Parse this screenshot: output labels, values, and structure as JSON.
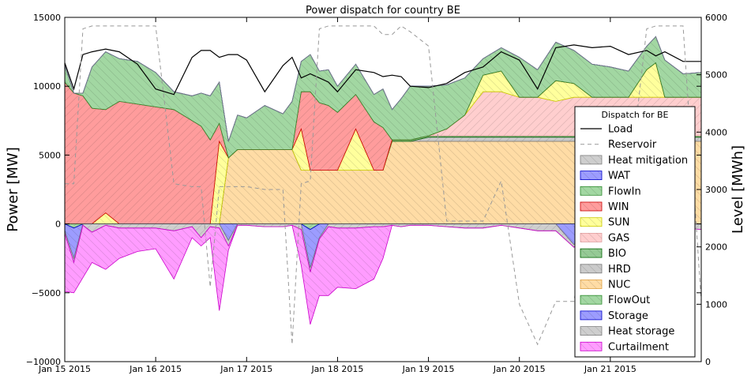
{
  "chart_data": {
    "type": "area",
    "title": "Power dispatch for country BE",
    "ylabel_left": "Power [MW]",
    "ylabel_right": "Level [MWh]",
    "ylim_left": [
      -10000,
      15000
    ],
    "ylim_right": [
      0,
      6000
    ],
    "yticks_left": [
      -10000,
      -5000,
      0,
      5000,
      10000,
      15000
    ],
    "yticks_left_labels": [
      "−10000",
      "−5000",
      "0",
      "5000",
      "10000",
      "15000"
    ],
    "yticks_right": [
      0,
      1000,
      2000,
      3000,
      4000,
      5000,
      6000
    ],
    "xlim": [
      0,
      7
    ],
    "xticks": [
      0,
      1,
      2,
      3,
      4,
      5,
      6
    ],
    "xtick_labels": [
      "Jan 15 2015",
      "Jan 16 2015",
      "Jan 17 2015",
      "Jan 18 2015",
      "Jan 19 2015",
      "Jan 20 2015",
      "Jan 21 2015"
    ],
    "legend_title": "Dispatch for BE",
    "legend_position": "center-right",
    "legend": [
      {
        "name": "Load",
        "kind": "line",
        "color": "#000000"
      },
      {
        "name": "Reservoir",
        "kind": "dashed",
        "color": "#999999"
      },
      {
        "name": "Heat mitigation",
        "kind": "patch",
        "color": "#c0c0c0",
        "edge": "#808080"
      },
      {
        "name": "WAT",
        "kind": "patch",
        "color": "#8080ff",
        "edge": "#0000cc"
      },
      {
        "name": "FlowIn",
        "kind": "patch",
        "color": "#88cc88",
        "edge": "#2e8b2e"
      },
      {
        "name": "WIN",
        "kind": "patch",
        "color": "#ff8080",
        "edge": "#cc0000"
      },
      {
        "name": "SUN",
        "kind": "patch",
        "color": "#ffff80",
        "edge": "#cccc00"
      },
      {
        "name": "GAS",
        "kind": "patch",
        "color": "#ffc0c0",
        "edge": "#e0a0a0"
      },
      {
        "name": "BIO",
        "kind": "patch",
        "color": "#77bb77",
        "edge": "#006400"
      },
      {
        "name": "HRD",
        "kind": "patch",
        "color": "#bbbbbb",
        "edge": "#777777"
      },
      {
        "name": "NUC",
        "kind": "patch",
        "color": "#ffd28c",
        "edge": "#e0a040"
      },
      {
        "name": "FlowOut",
        "kind": "patch",
        "color": "#88cc88",
        "edge": "#2e8b2e"
      },
      {
        "name": "Storage",
        "kind": "patch",
        "color": "#8080ff",
        "edge": "#0000cc"
      },
      {
        "name": "Heat storage",
        "kind": "patch",
        "color": "#c0c0c0",
        "edge": "#808080"
      },
      {
        "name": "Curtailment",
        "kind": "patch",
        "color": "#ff80ff",
        "edge": "#cc00cc"
      }
    ],
    "x": [
      0,
      0.1,
      0.2,
      0.3,
      0.45,
      0.6,
      0.8,
      1.0,
      1.2,
      1.4,
      1.5,
      1.6,
      1.7,
      1.8,
      1.9,
      2.0,
      2.2,
      2.4,
      2.5,
      2.6,
      2.7,
      2.8,
      2.9,
      3.0,
      3.2,
      3.4,
      3.5,
      3.6,
      3.7,
      3.8,
      4.0,
      4.2,
      4.4,
      4.6,
      4.8,
      5.0,
      5.2,
      5.4,
      5.6,
      5.8,
      6.0,
      6.2,
      6.4,
      6.5,
      6.6,
      6.8,
      7.0
    ],
    "series": [
      {
        "name": "NUC",
        "values": [
          0,
          0,
          0,
          0,
          0,
          0,
          0,
          0,
          0,
          0,
          0,
          0,
          0,
          4800,
          5400,
          5400,
          5400,
          5400,
          5400,
          3900,
          3900,
          3900,
          3900,
          3900,
          3900,
          3900,
          3900,
          6000,
          6000,
          6000,
          6000,
          6000,
          6000,
          6000,
          6000,
          6000,
          6000,
          6000,
          6000,
          6000,
          6000,
          6000,
          6000,
          6000,
          6000,
          6000,
          6000
        ]
      },
      {
        "name": "HRD",
        "values": [
          0,
          0,
          0,
          0,
          0,
          0,
          0,
          0,
          0,
          0,
          0,
          0,
          0,
          0,
          0,
          0,
          0,
          0,
          0,
          0,
          0,
          0,
          0,
          0,
          0,
          0,
          0,
          0,
          0,
          0,
          300,
          300,
          300,
          300,
          300,
          300,
          300,
          300,
          300,
          300,
          300,
          300,
          300,
          300,
          300,
          300,
          300
        ]
      },
      {
        "name": "BIO",
        "values": [
          0,
          0,
          0,
          0,
          0,
          0,
          0,
          0,
          0,
          0,
          0,
          0,
          0,
          0,
          0,
          0,
          0,
          0,
          0,
          0,
          0,
          0,
          0,
          0,
          0,
          0,
          0,
          100,
          100,
          100,
          100,
          100,
          100,
          100,
          100,
          100,
          100,
          100,
          100,
          100,
          100,
          100,
          100,
          100,
          100,
          100,
          100
        ]
      },
      {
        "name": "GAS",
        "values": [
          0,
          0,
          0,
          0,
          0,
          0,
          0,
          0,
          0,
          0,
          0,
          0,
          0,
          0,
          0,
          0,
          0,
          0,
          0,
          0,
          0,
          0,
          0,
          0,
          0,
          0,
          0,
          0,
          0,
          0,
          0,
          500,
          1500,
          3200,
          3200,
          2800,
          2800,
          2500,
          2800,
          2800,
          2800,
          2800,
          2800,
          2800,
          2800,
          2800,
          2800
        ]
      },
      {
        "name": "SUN",
        "values": [
          0,
          0,
          0,
          0,
          800,
          0,
          0,
          0,
          0,
          0,
          0,
          0,
          6000,
          0,
          0,
          0,
          0,
          0,
          0,
          3000,
          0,
          0,
          0,
          0,
          3000,
          0,
          0,
          0,
          0,
          0,
          0,
          0,
          0,
          1200,
          1500,
          0,
          0,
          1500,
          1000,
          0,
          0,
          0,
          2000,
          2500,
          0,
          0,
          0
        ]
      },
      {
        "name": "WIN",
        "values": [
          10300,
          9500,
          9300,
          8400,
          7500,
          8900,
          8700,
          8500,
          8300,
          7500,
          7100,
          6100,
          1300,
          0,
          0,
          0,
          0,
          0,
          0,
          2700,
          5700,
          4900,
          4700,
          4200,
          2500,
          3500,
          3100,
          0,
          0,
          0,
          0,
          0,
          0,
          0,
          0,
          0,
          0,
          0,
          0,
          0,
          0,
          0,
          0,
          0,
          0,
          0,
          0
        ]
      },
      {
        "name": "FlowIn",
        "values": [
          1200,
          0,
          200,
          3000,
          4200,
          3100,
          3100,
          2500,
          1300,
          1800,
          2400,
          3200,
          3000,
          1200,
          2500,
          2300,
          3200,
          2600,
          3500,
          2200,
          2700,
          2300,
          2600,
          1900,
          2200,
          2000,
          2800,
          2200,
          3000,
          3900,
          3600,
          3200,
          2700,
          1200,
          1700,
          2900,
          2000,
          2800,
          2400,
          2400,
          2200,
          1900,
          1700,
          1900,
          2700,
          1700,
          1800
        ]
      },
      {
        "name": "WAT",
        "values": [
          0,
          0,
          0,
          0,
          0,
          0,
          0,
          0,
          0,
          0,
          0,
          0,
          0,
          0,
          0,
          0,
          0,
          0,
          0,
          0,
          0,
          0,
          0,
          0,
          0,
          0,
          0,
          0,
          0,
          0,
          0,
          0,
          0,
          0,
          0,
          0,
          0,
          0,
          0,
          0,
          0,
          0,
          0,
          0,
          0,
          0,
          0
        ]
      },
      {
        "name": "Heat mitigation",
        "values": [
          0,
          0,
          0,
          0,
          0,
          0,
          0,
          0,
          0,
          0,
          0,
          0,
          0,
          0,
          0,
          0,
          0,
          0,
          0,
          0,
          0,
          0,
          0,
          0,
          0,
          0,
          0,
          0,
          0,
          0,
          0,
          0,
          0,
          0,
          0,
          0,
          0,
          0,
          0,
          0,
          0,
          0,
          0,
          0,
          0,
          0,
          0
        ]
      },
      {
        "name": "FlowOut",
        "values": [
          0,
          -300,
          0,
          0,
          0,
          0,
          0,
          0,
          0,
          0,
          0,
          0,
          0,
          0,
          0,
          0,
          0,
          0,
          0,
          0,
          -400,
          0,
          0,
          0,
          0,
          0,
          0,
          0,
          0,
          0,
          0,
          0,
          0,
          0,
          0,
          0,
          0,
          0,
          0,
          0,
          0,
          0,
          0,
          0,
          0,
          0,
          0
        ]
      },
      {
        "name": "Storage",
        "values": [
          -500,
          -2200,
          0,
          0,
          0,
          0,
          0,
          0,
          0,
          0,
          0,
          0,
          0,
          -1200,
          0,
          0,
          0,
          0,
          0,
          0,
          -2800,
          -1000,
          0,
          0,
          0,
          0,
          0,
          0,
          0,
          0,
          0,
          0,
          0,
          0,
          0,
          0,
          0,
          0,
          -1500,
          0,
          0,
          0,
          0,
          0,
          0,
          0,
          0
        ]
      },
      {
        "name": "Heat storage",
        "values": [
          -200,
          -300,
          -100,
          -600,
          -100,
          -300,
          -300,
          -300,
          -500,
          -200,
          -1000,
          -200,
          -300,
          -400,
          -100,
          -100,
          -200,
          -200,
          -100,
          -400,
          -300,
          -100,
          -200,
          -300,
          -300,
          -200,
          -200,
          -100,
          -200,
          -100,
          -100,
          -200,
          -300,
          -300,
          -100,
          -300,
          -500,
          -500,
          -200,
          -200,
          -100,
          -300,
          -500,
          -200,
          -200,
          -300,
          -400
        ]
      },
      {
        "name": "Curtailment",
        "values": [
          -4200,
          -2200,
          -3800,
          -2200,
          -3200,
          -2200,
          -1700,
          -1500,
          -3500,
          -800,
          -600,
          -800,
          -6000,
          -300,
          0,
          0,
          0,
          0,
          0,
          -2600,
          -3800,
          -4100,
          -5000,
          -4300,
          -4400,
          -3800,
          -2300,
          0,
          0,
          0,
          0,
          0,
          0,
          0,
          0,
          0,
          0,
          0,
          0,
          0,
          0,
          0,
          0,
          0,
          0,
          0,
          0
        ]
      }
    ],
    "load": [
      11700,
      9800,
      12300,
      12500,
      12700,
      12500,
      11600,
      9800,
      9400,
      12100,
      12600,
      12600,
      12100,
      12300,
      12300,
      11900,
      9600,
      11500,
      12100,
      10600,
      10900,
      10600,
      10300,
      9600,
      11200,
      11000,
      10700,
      10800,
      10700,
      10000,
      9900,
      10200,
      11000,
      11400,
      12500,
      11900,
      9800,
      12800,
      13000,
      12800,
      12900,
      12300,
      12600,
      12200,
      12500,
      11800,
      11800
    ],
    "reservoir": [
      3100,
      3100,
      5800,
      5850,
      5850,
      5850,
      5850,
      5850,
      3100,
      3050,
      3050,
      1300,
      3050,
      3050,
      3050,
      3050,
      3000,
      3000,
      300,
      3100,
      3150,
      5800,
      5850,
      5850,
      5850,
      5850,
      5700,
      5700,
      5850,
      5750,
      5500,
      2450,
      2450,
      2450,
      3150,
      1000,
      300,
      1050,
      1050,
      3100,
      3000,
      3000,
      5800,
      5850,
      5850,
      5850,
      1050
    ]
  }
}
